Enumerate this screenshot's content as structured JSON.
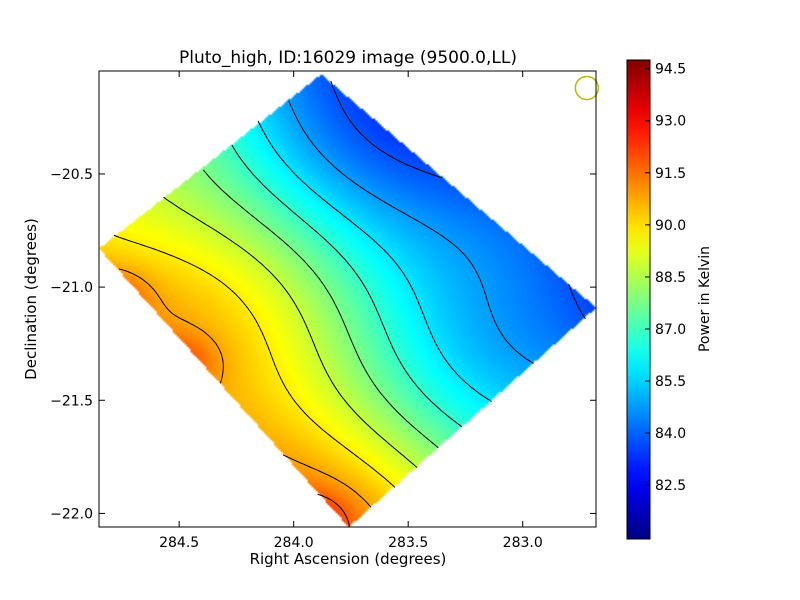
{
  "chart_data": {
    "type": "heatmap",
    "title": "Pluto_high, ID:16029 image (9500.0,LL)",
    "xlabel": "Right Ascension (degrees)",
    "ylabel": "Declination (degrees)",
    "xlim": [
      284.85,
      282.68
    ],
    "ylim": [
      -22.06,
      -20.045
    ],
    "x_ticks": [
      {
        "value": 284.5,
        "label": "284.5"
      },
      {
        "value": 284.0,
        "label": "284.0"
      },
      {
        "value": 283.5,
        "label": "283.5"
      },
      {
        "value": 283.0,
        "label": "283.0"
      }
    ],
    "y_ticks": [
      {
        "value": -20.5,
        "label": "−20.5"
      },
      {
        "value": -21.0,
        "label": "−21.0"
      },
      {
        "value": -21.5,
        "label": "−21.5"
      },
      {
        "value": -22.0,
        "label": "−22.0"
      }
    ],
    "footprint_corners": [
      [
        284.85,
        -20.83
      ],
      [
        283.88,
        -20.06
      ],
      [
        282.68,
        -21.09
      ],
      [
        283.76,
        -22.06
      ]
    ],
    "beam_marker": {
      "ra": 282.72,
      "dec": -20.12,
      "color": "#b8b800"
    },
    "colorbar": {
      "label": "Power in Kelvin",
      "colormap": "jet",
      "min": 80.95,
      "max": 94.75,
      "ticks": [
        "82.5",
        "84.0",
        "85.5",
        "87.0",
        "88.5",
        "90.0",
        "91.5",
        "93.0",
        "94.5"
      ]
    },
    "value_range_kelvin": [
      80.95,
      94.75
    ],
    "gradient": "power decreases from the lower-left (about 94) toward the upper-right (about 81); contours run diagonally from upper-left to lower-right",
    "contour_levels_kelvin": [
      82.0,
      82.9,
      83.8,
      84.8,
      85.8,
      86.8,
      87.8,
      88.8,
      89.8,
      90.8,
      91.8,
      92.8,
      93.8
    ],
    "hotspots": [
      {
        "ra": 284.8,
        "dec": -21.04,
        "value": 94.3
      },
      {
        "ra": 284.5,
        "dec": -21.33,
        "value": 93.6
      },
      {
        "ra": 283.92,
        "dec": -22.02,
        "value": 94.0
      }
    ]
  }
}
